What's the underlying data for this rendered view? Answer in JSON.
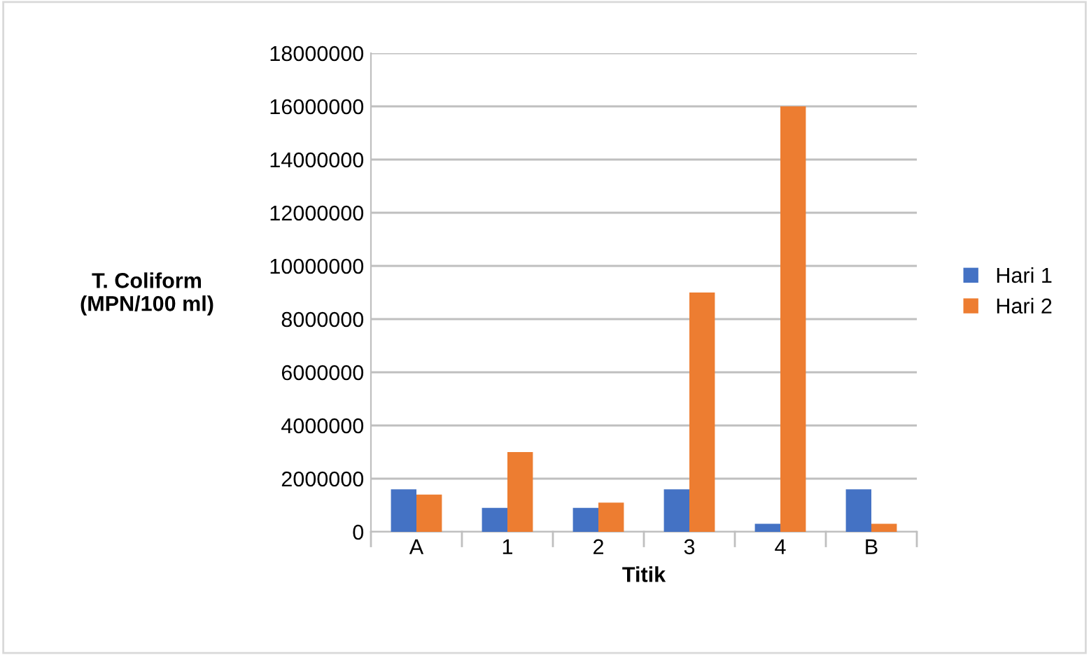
{
  "chart_data": {
    "type": "bar",
    "xlabel": "Titik",
    "ylabel": "T. Coliform\n(MPN/100 ml)",
    "categories": [
      "A",
      "1",
      "2",
      "3",
      "4",
      "B"
    ],
    "series": [
      {
        "name": "Hari 1",
        "color": "#4472c4",
        "values": [
          1600000,
          900000,
          900000,
          1600000,
          300000,
          1600000
        ]
      },
      {
        "name": "Hari 2",
        "color": "#ed7d31",
        "values": [
          1400000,
          3000000,
          1100000,
          9000000,
          16000000,
          300000
        ]
      }
    ],
    "ylim": [
      0,
      18000000
    ],
    "yticks": [
      0,
      2000000,
      4000000,
      6000000,
      8000000,
      10000000,
      12000000,
      14000000,
      16000000,
      18000000
    ],
    "grid": "y",
    "legend": "right"
  }
}
